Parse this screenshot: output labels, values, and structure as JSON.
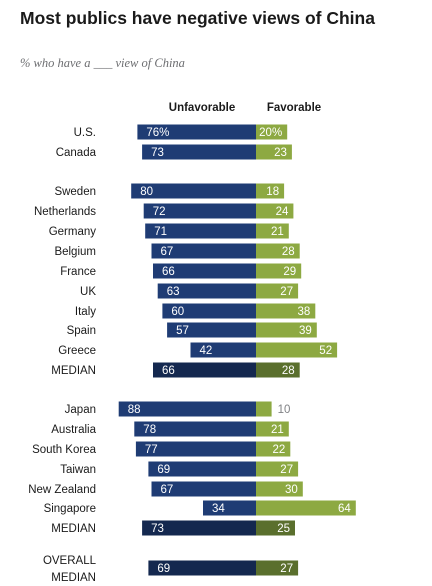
{
  "header": {
    "title": "Most publics have negative views of China",
    "subtitle": "% who have a ___ view of China"
  },
  "colors": {
    "unfavorable": "#1f3c74",
    "unfavorable_median": "#14284f",
    "favorable": "#8da942",
    "favorable_median": "#5a6f2d"
  },
  "chart_data": {
    "type": "bar",
    "columns": {
      "unfavorable": "Unfavorable",
      "favorable": "Favorable"
    },
    "series": [
      {
        "name": "Unfavorable",
        "values": [
          76,
          73,
          80,
          72,
          71,
          67,
          66,
          63,
          60,
          57,
          42,
          66,
          88,
          78,
          77,
          69,
          67,
          34,
          73,
          69
        ]
      },
      {
        "name": "Favorable",
        "values": [
          20,
          23,
          18,
          24,
          21,
          28,
          29,
          27,
          38,
          39,
          52,
          28,
          10,
          21,
          22,
          27,
          30,
          64,
          25,
          27
        ]
      }
    ],
    "rows": [
      {
        "label": "U.S.",
        "unfavorable": 76,
        "favorable": 20,
        "unf_text": "76%",
        "fav_text": "20%"
      },
      {
        "label": "Canada",
        "unfavorable": 73,
        "favorable": 23,
        "unf_text": "73",
        "fav_text": "23"
      },
      {
        "label": "Sweden",
        "unfavorable": 80,
        "favorable": 18,
        "unf_text": "80",
        "fav_text": "18"
      },
      {
        "label": "Netherlands",
        "unfavorable": 72,
        "favorable": 24,
        "unf_text": "72",
        "fav_text": "24"
      },
      {
        "label": "Germany",
        "unfavorable": 71,
        "favorable": 21,
        "unf_text": "71",
        "fav_text": "21"
      },
      {
        "label": "Belgium",
        "unfavorable": 67,
        "favorable": 28,
        "unf_text": "67",
        "fav_text": "28"
      },
      {
        "label": "France",
        "unfavorable": 66,
        "favorable": 29,
        "unf_text": "66",
        "fav_text": "29"
      },
      {
        "label": "UK",
        "unfavorable": 63,
        "favorable": 27,
        "unf_text": "63",
        "fav_text": "27"
      },
      {
        "label": "Italy",
        "unfavorable": 60,
        "favorable": 38,
        "unf_text": "60",
        "fav_text": "38"
      },
      {
        "label": "Spain",
        "unfavorable": 57,
        "favorable": 39,
        "unf_text": "57",
        "fav_text": "39"
      },
      {
        "label": "Greece",
        "unfavorable": 42,
        "favorable": 52,
        "unf_text": "42",
        "fav_text": "52"
      },
      {
        "label": "MEDIAN",
        "unfavorable": 66,
        "favorable": 28,
        "unf_text": "66",
        "fav_text": "28",
        "median": true
      },
      {
        "label": "Japan",
        "unfavorable": 88,
        "favorable": 10,
        "unf_text": "88",
        "fav_text": "10"
      },
      {
        "label": "Australia",
        "unfavorable": 78,
        "favorable": 21,
        "unf_text": "78",
        "fav_text": "21"
      },
      {
        "label": "South Korea",
        "unfavorable": 77,
        "favorable": 22,
        "unf_text": "77",
        "fav_text": "22"
      },
      {
        "label": "Taiwan",
        "unfavorable": 69,
        "favorable": 27,
        "unf_text": "69",
        "fav_text": "27"
      },
      {
        "label": "New Zealand",
        "unfavorable": 67,
        "favorable": 30,
        "unf_text": "67",
        "fav_text": "30"
      },
      {
        "label": "Singapore",
        "unfavorable": 34,
        "favorable": 64,
        "unf_text": "34",
        "fav_text": "64"
      },
      {
        "label": "MEDIAN",
        "unfavorable": 73,
        "favorable": 25,
        "unf_text": "73",
        "fav_text": "25",
        "median": true
      },
      {
        "label": "OVERALL MEDIAN",
        "label_lines": [
          "OVERALL",
          "MEDIAN"
        ],
        "unfavorable": 69,
        "favorable": 27,
        "unf_text": "69",
        "fav_text": "27",
        "median": true
      }
    ]
  }
}
